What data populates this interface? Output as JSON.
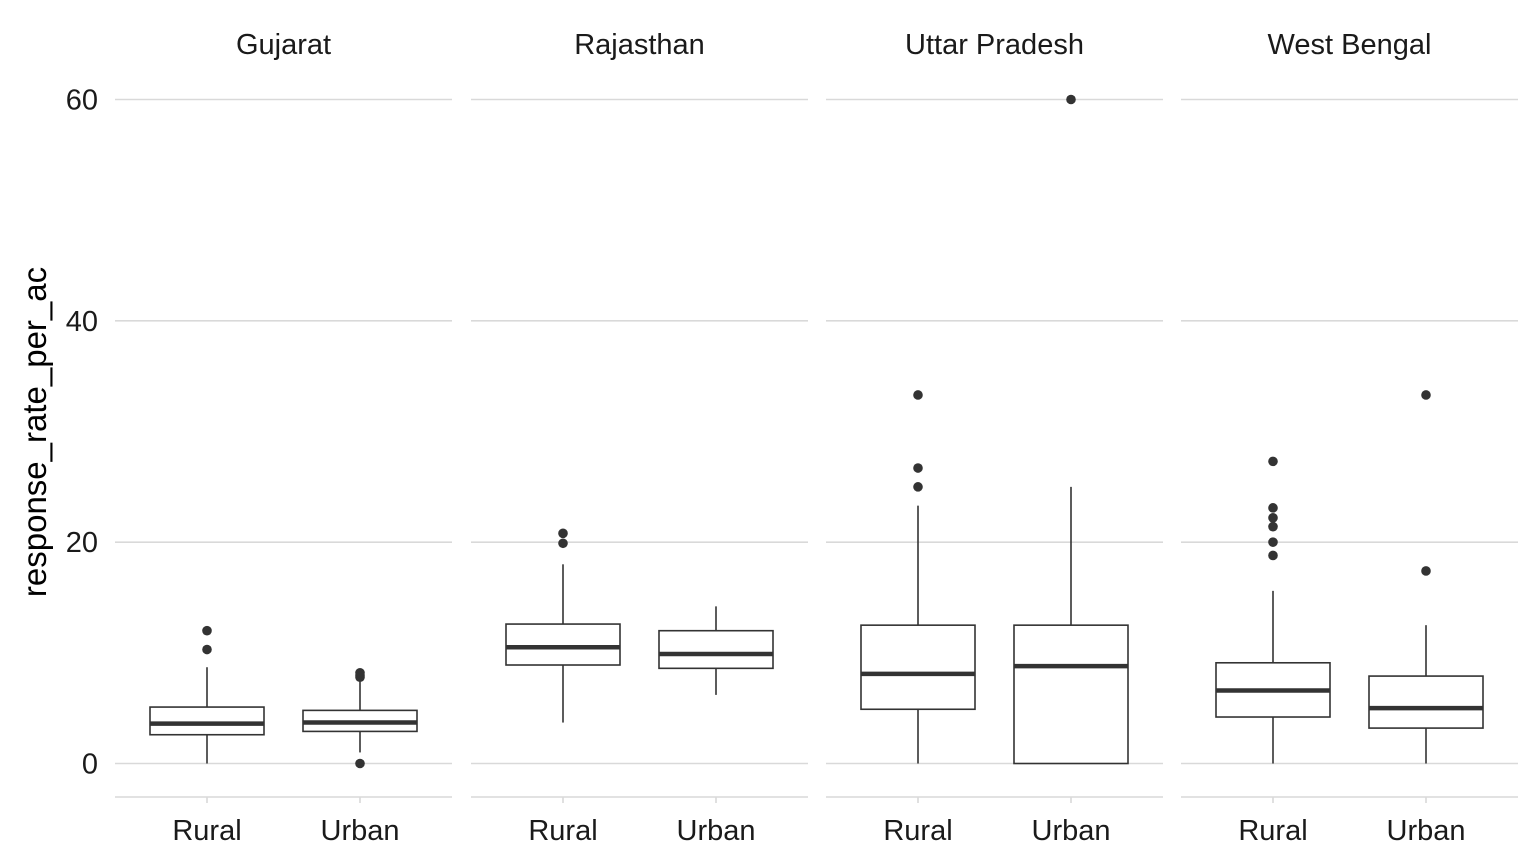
{
  "chart_data": {
    "type": "boxplot",
    "facet_by": "state",
    "facets": [
      "Gujarat",
      "Rajasthan",
      "Uttar Pradesh",
      "West Bengal"
    ],
    "categories": [
      "Rural",
      "Urban"
    ],
    "ylabel": "response_rate_per_ac",
    "xlabel": "",
    "ylim": [
      -3,
      62
    ],
    "yticks": [
      0,
      20,
      40,
      60
    ],
    "grid": "horizontal-major",
    "legend": "none",
    "colors": {
      "box_stroke": "#333333",
      "grid": "#d9d9d9",
      "background": "#ffffff"
    },
    "boxes": [
      {
        "facet": "Gujarat",
        "category": "Rural",
        "lower_whisker": 0,
        "q1": 2.6,
        "median": 3.6,
        "q3": 5.1,
        "upper_whisker": 8.7,
        "outliers": [
          10.3,
          12.0
        ]
      },
      {
        "facet": "Gujarat",
        "category": "Urban",
        "lower_whisker": 1.0,
        "q1": 2.9,
        "median": 3.7,
        "q3": 4.8,
        "upper_whisker": 7.4,
        "outliers": [
          0.0,
          7.8,
          8.0,
          8.2
        ]
      },
      {
        "facet": "Rajasthan",
        "category": "Rural",
        "lower_whisker": 3.7,
        "q1": 8.9,
        "median": 10.5,
        "q3": 12.6,
        "upper_whisker": 18.0,
        "outliers": [
          19.9,
          20.8
        ]
      },
      {
        "facet": "Rajasthan",
        "category": "Urban",
        "lower_whisker": 6.2,
        "q1": 8.6,
        "median": 9.9,
        "q3": 12.0,
        "upper_whisker": 14.2,
        "outliers": []
      },
      {
        "facet": "Uttar Pradesh",
        "category": "Rural",
        "lower_whisker": 0,
        "q1": 4.9,
        "median": 8.1,
        "q3": 12.5,
        "upper_whisker": 23.3,
        "outliers": [
          25.0,
          26.7,
          33.3
        ]
      },
      {
        "facet": "Uttar Pradesh",
        "category": "Urban",
        "lower_whisker": 0,
        "q1": 0,
        "median": 8.8,
        "q3": 12.5,
        "upper_whisker": 25.0,
        "outliers": [
          60.0
        ]
      },
      {
        "facet": "West Bengal",
        "category": "Rural",
        "lower_whisker": 0,
        "q1": 4.2,
        "median": 6.6,
        "q3": 9.1,
        "upper_whisker": 15.6,
        "outliers": [
          18.8,
          20.0,
          21.4,
          22.2,
          23.1,
          27.3
        ]
      },
      {
        "facet": "West Bengal",
        "category": "Urban",
        "lower_whisker": 0,
        "q1": 3.2,
        "median": 5.0,
        "q3": 7.9,
        "upper_whisker": 12.5,
        "outliers": [
          17.4,
          33.3
        ]
      }
    ]
  }
}
